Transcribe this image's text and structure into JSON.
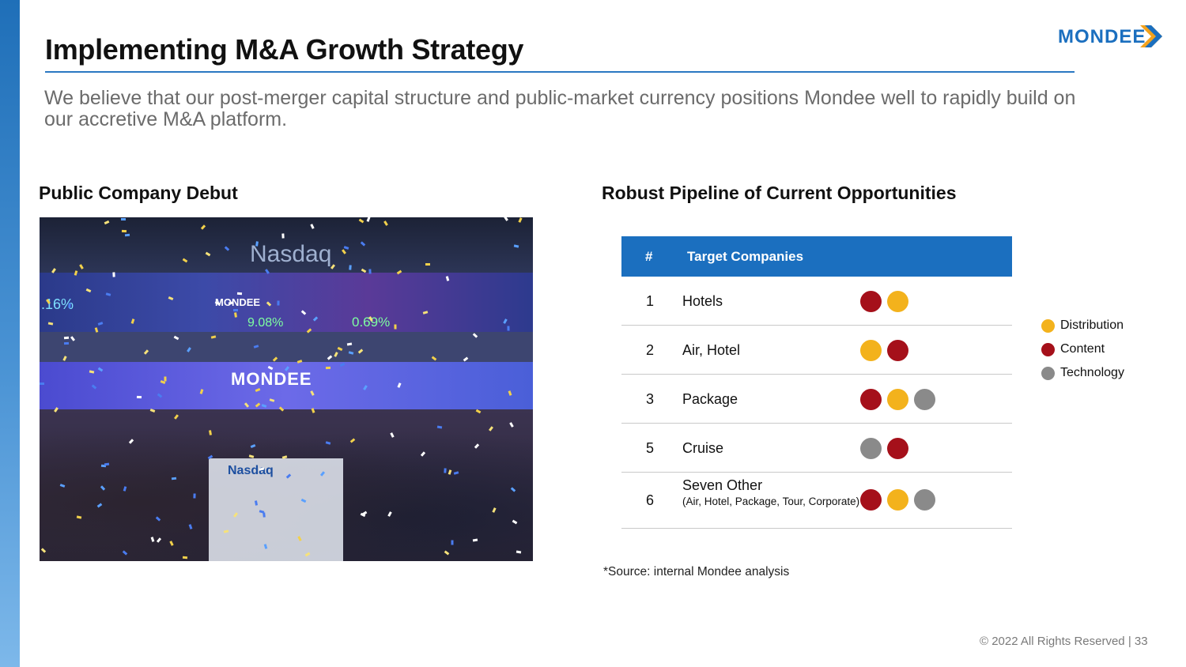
{
  "title": "Implementing M&A Growth Strategy",
  "subtitle": "We believe that our post-merger capital structure and public-market currency positions Mondee well to rapidly build on our accretive M&A platform.",
  "logo_text": "MONDEE",
  "colors": {
    "brand_blue": "#1b6fbf",
    "distribution": "#f3b21c",
    "content": "#a5101a",
    "technology": "#8a8a8a"
  },
  "left_section": {
    "heading": "Public Company Debut",
    "photo": {
      "nasdaq_sign": "Nasdaq",
      "mondee_sign": "MONDEE",
      "ticker_mondee": "MONDEE",
      "pct_composite": ".16%",
      "pct_mond": "9.08%",
      "pct_dji": "0.69%",
      "podium_text": "Nasdaq"
    }
  },
  "right_section": {
    "heading": "Robust Pipeline of Current Opportunities",
    "table": {
      "headers": {
        "num": "#",
        "name": "Target Companies"
      },
      "rows": [
        {
          "num": "1",
          "name": "Hotels",
          "sub": "",
          "dots": [
            "content",
            "distribution"
          ]
        },
        {
          "num": "2",
          "name": "Air, Hotel",
          "sub": "",
          "dots": [
            "distribution",
            "content"
          ]
        },
        {
          "num": "3",
          "name": "Package",
          "sub": "",
          "dots": [
            "content",
            "distribution",
            "technology"
          ]
        },
        {
          "num": "5",
          "name": "Cruise",
          "sub": "",
          "dots": [
            "technology",
            "content"
          ]
        },
        {
          "num": "6",
          "name": "Seven Other",
          "sub": "(Air, Hotel, Package, Tour, Corporate)",
          "dots": [
            "content",
            "distribution",
            "technology"
          ]
        }
      ]
    },
    "legend": [
      {
        "key": "distribution",
        "label": "Distribution"
      },
      {
        "key": "content",
        "label": "Content"
      },
      {
        "key": "technology",
        "label": "Technology"
      }
    ],
    "source": "*Source: internal Mondee analysis"
  },
  "footer": "© 2022 All Rights Reserved |   33"
}
